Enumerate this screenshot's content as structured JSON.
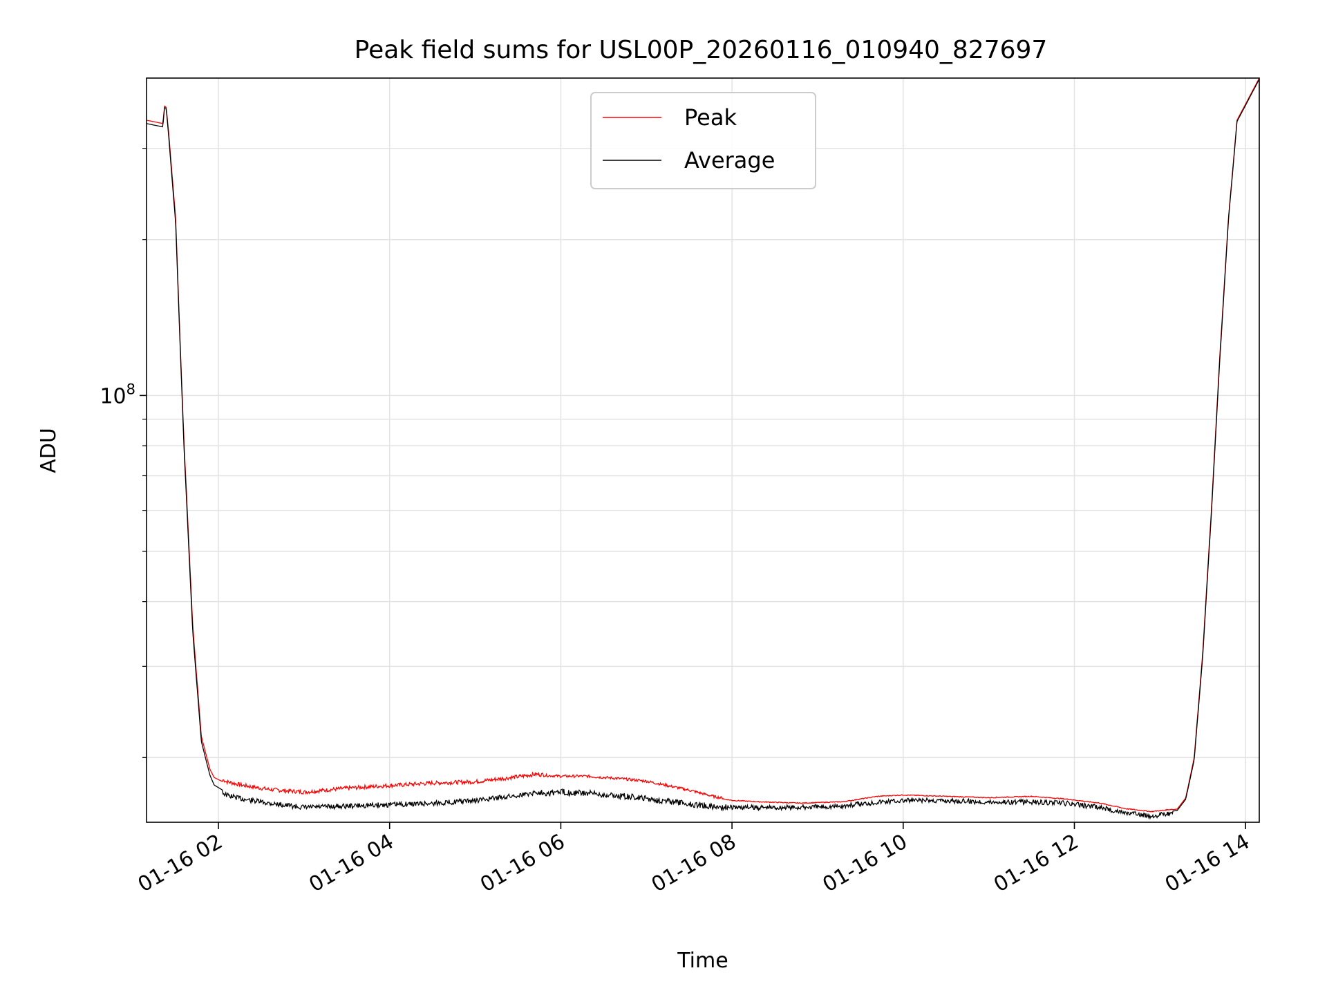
{
  "chart_data": {
    "type": "line",
    "title": "Peak field sums for USL00P_20260116_010940_827697",
    "xlabel": "Time",
    "ylabel": "ADU",
    "y_scale": "log",
    "grid": true,
    "legend_position": "top-center",
    "colors": {
      "peak": "#ff0000",
      "average": "#000000",
      "grid": "#e3e3e3",
      "axes": "#000000"
    },
    "xlim_hours": [
      1.16,
      14.16
    ],
    "ylim": [
      15000000,
      410000000
    ],
    "x_ticks": [
      {
        "value": 2,
        "label": "01-16 02"
      },
      {
        "value": 4,
        "label": "01-16 04"
      },
      {
        "value": 6,
        "label": "01-16 06"
      },
      {
        "value": 8,
        "label": "01-16 08"
      },
      {
        "value": 10,
        "label": "01-16 10"
      },
      {
        "value": 12,
        "label": "01-16 12"
      },
      {
        "value": 14,
        "label": "01-16 14"
      }
    ],
    "y_major_ticks": [
      {
        "value": 100000000,
        "base": "10",
        "exponent": "8"
      }
    ],
    "y_minor_ticks": [
      20000000,
      30000000,
      40000000,
      50000000,
      60000000,
      70000000,
      80000000,
      90000000,
      200000000,
      300000000
    ],
    "legend": [
      {
        "key": "peak",
        "label": "Peak"
      },
      {
        "key": "average",
        "label": "Average"
      }
    ],
    "series": [
      {
        "name": "Peak",
        "x": [
          1.16,
          1.35,
          1.37,
          1.39,
          1.42,
          1.5,
          1.55,
          1.6,
          1.7,
          1.8,
          1.9,
          1.95,
          2.1,
          2.3,
          2.6,
          3.0,
          3.5,
          4.0,
          4.5,
          5.0,
          5.5,
          5.7,
          6.0,
          6.3,
          6.7,
          7.0,
          7.5,
          7.8,
          8.0,
          8.3,
          8.8,
          9.3,
          9.7,
          10.0,
          10.5,
          11.0,
          11.5,
          11.9,
          12.3,
          12.6,
          12.9,
          13.2,
          13.3,
          13.4,
          13.5,
          13.6,
          13.7,
          13.8,
          13.9,
          14.16
        ],
        "y": [
          340000000,
          335000000,
          362000000,
          360000000,
          320000000,
          220000000,
          130000000,
          80000000,
          36000000,
          22000000,
          19000000,
          18300000,
          17800000,
          17500000,
          17200000,
          17000000,
          17300000,
          17500000,
          17700000,
          17800000,
          18200000,
          18400000,
          18300000,
          18300000,
          18100000,
          17900000,
          17200000,
          16700000,
          16500000,
          16400000,
          16300000,
          16400000,
          16800000,
          16900000,
          16800000,
          16700000,
          16800000,
          16600000,
          16300000,
          15900000,
          15700000,
          15900000,
          16700000,
          20000000,
          32000000,
          60000000,
          120000000,
          220000000,
          340000000,
          410000000
        ]
      },
      {
        "name": "Average",
        "x": [
          1.16,
          1.35,
          1.37,
          1.39,
          1.42,
          1.5,
          1.55,
          1.6,
          1.7,
          1.8,
          1.9,
          1.95,
          2.1,
          2.3,
          2.6,
          3.0,
          3.5,
          4.0,
          4.5,
          5.0,
          5.5,
          5.7,
          6.0,
          6.3,
          6.7,
          7.0,
          7.5,
          7.8,
          8.0,
          8.3,
          8.8,
          9.3,
          9.7,
          10.0,
          10.5,
          11.0,
          11.5,
          11.9,
          12.3,
          12.6,
          12.9,
          13.2,
          13.3,
          13.4,
          13.5,
          13.6,
          13.7,
          13.8,
          13.9,
          14.16
        ],
        "y": [
          335000000,
          330000000,
          360000000,
          358000000,
          315000000,
          215000000,
          128000000,
          78000000,
          35000000,
          21500000,
          18500000,
          17700000,
          17100000,
          16800000,
          16500000,
          16200000,
          16300000,
          16400000,
          16500000,
          16700000,
          17100000,
          17300000,
          17400000,
          17300000,
          17100000,
          16900000,
          16500000,
          16300000,
          16200000,
          16200000,
          16200000,
          16300000,
          16600000,
          16700000,
          16700000,
          16600000,
          16600000,
          16500000,
          16200000,
          15800000,
          15600000,
          15800000,
          16600000,
          19800000,
          31500000,
          59000000,
          118000000,
          218000000,
          338000000,
          408000000
        ]
      }
    ]
  }
}
